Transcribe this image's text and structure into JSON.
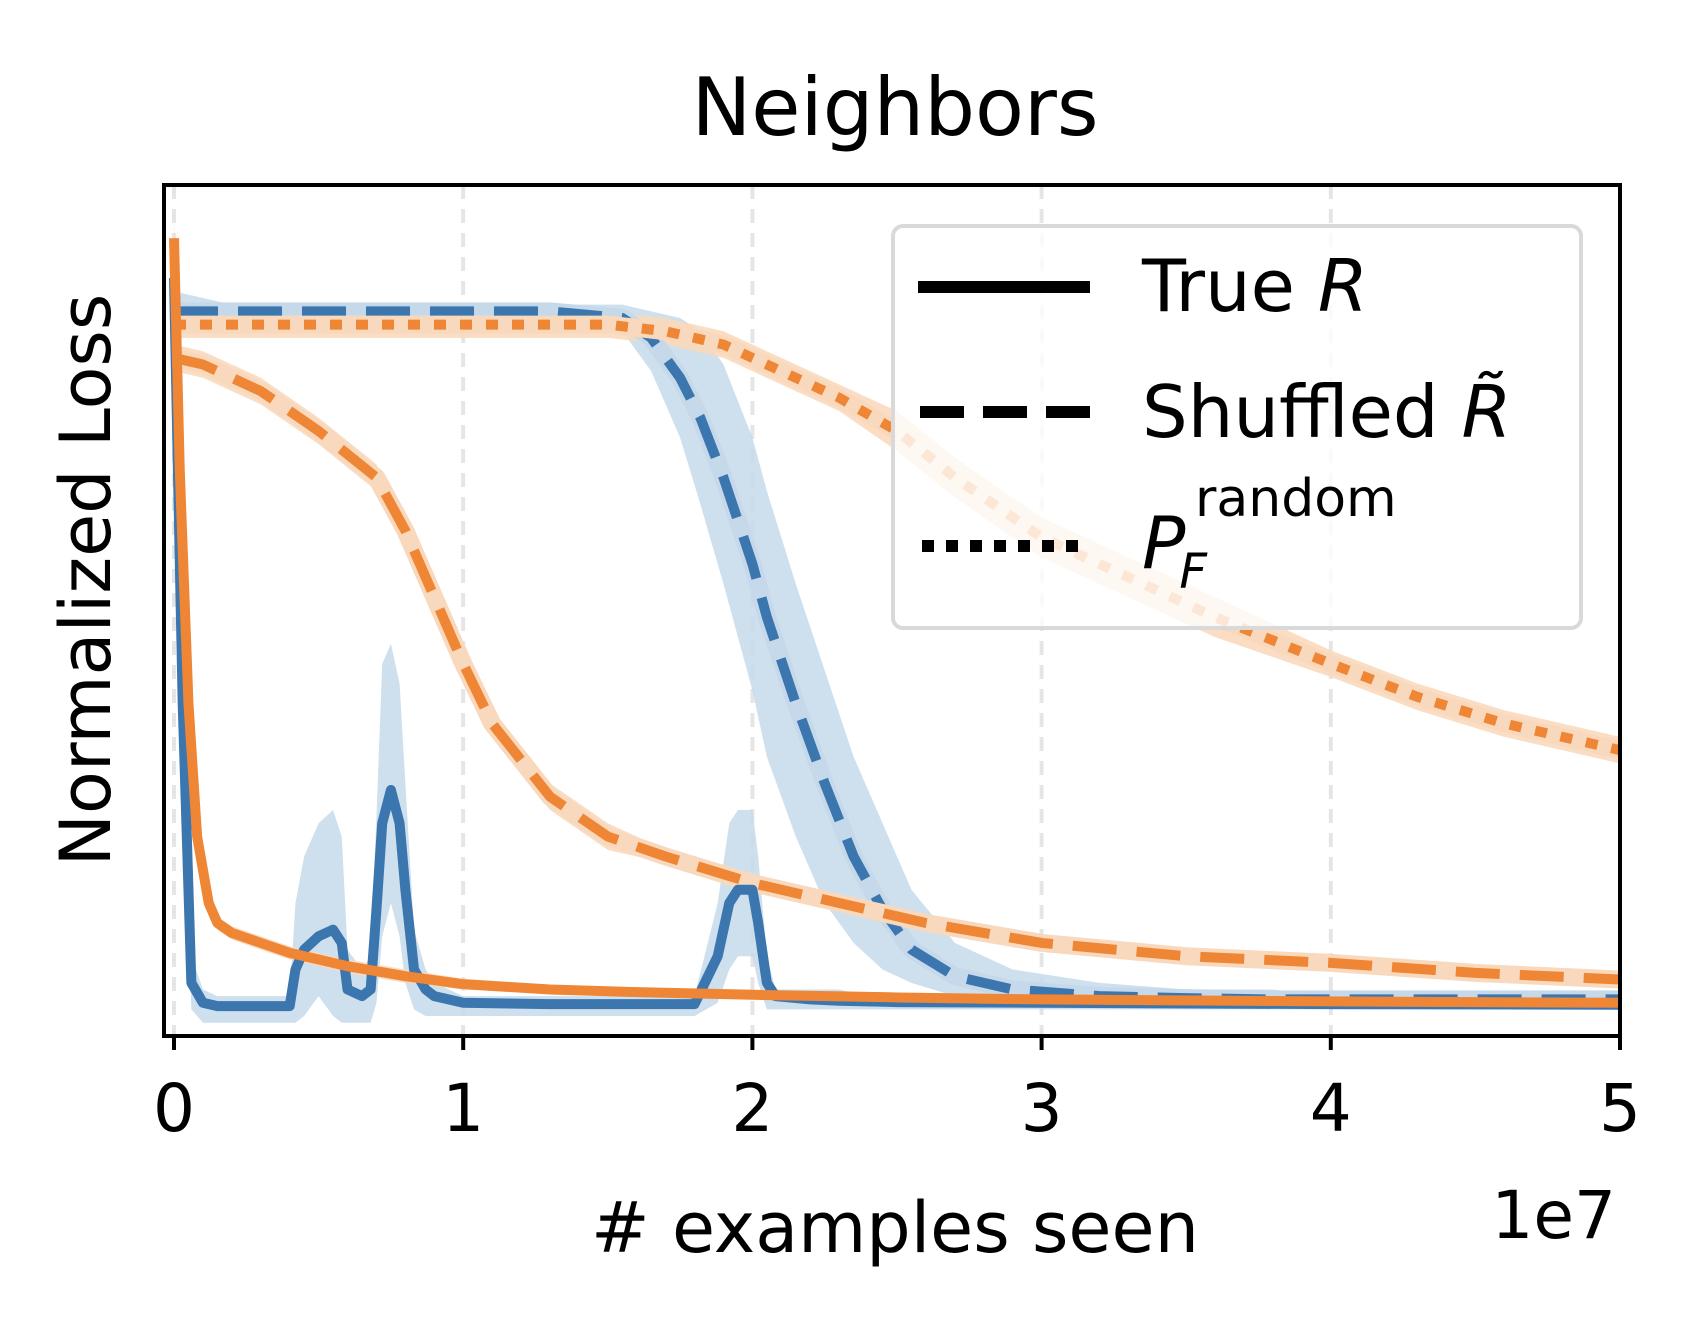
{
  "chart_data": {
    "type": "line",
    "title": "Neighbors",
    "xlabel": "# examples seen",
    "ylabel": "Normalized Loss",
    "x_offset_label": "1e7",
    "x_ticks": [
      "0",
      "1",
      "2",
      "3",
      "4",
      "5"
    ],
    "y_ticks": [],
    "xlim": [
      0,
      5
    ],
    "ylim": [
      0,
      1.28
    ],
    "x_grid": true,
    "y_grid": false,
    "legend": {
      "position": "top-right",
      "entries": [
        {
          "style": "solid",
          "label_main": "True ",
          "label_var": "R",
          "label_sup": ""
        },
        {
          "style": "dashed",
          "label_main": "Shuffled ",
          "label_var": "R̃",
          "label_sup": ""
        },
        {
          "style": "dotted",
          "label_main": "",
          "label_var": "P",
          "label_sub": "F",
          "label_sup": "random"
        }
      ]
    },
    "colors": {
      "blue": "#3b76af",
      "orange": "#ef8636",
      "blue_band": "#c6d9ea",
      "orange_band": "#f9d9bd"
    },
    "series": [
      {
        "color": "blue",
        "style": "solid",
        "x": [
          0.0,
          0.03,
          0.06,
          0.1,
          0.15,
          0.2,
          0.4,
          0.42,
          0.45,
          0.5,
          0.55,
          0.58,
          0.6,
          0.65,
          0.68,
          0.7,
          0.72,
          0.75,
          0.78,
          0.8,
          0.83,
          0.87,
          0.9,
          1.0,
          1.3,
          1.6,
          1.8,
          1.88,
          1.92,
          1.95,
          2.0,
          2.02,
          2.05,
          2.08,
          2.2,
          2.3,
          2.4,
          2.5,
          3.0,
          4.0,
          5.0
        ],
        "y": [
          1.14,
          0.5,
          0.08,
          0.05,
          0.045,
          0.045,
          0.045,
          0.1,
          0.13,
          0.15,
          0.16,
          0.14,
          0.07,
          0.06,
          0.07,
          0.19,
          0.32,
          0.37,
          0.32,
          0.22,
          0.1,
          0.07,
          0.06,
          0.05,
          0.048,
          0.048,
          0.048,
          0.12,
          0.2,
          0.22,
          0.22,
          0.17,
          0.08,
          0.06,
          0.055,
          0.053,
          0.052,
          0.051,
          0.05,
          0.048,
          0.047
        ],
        "band_lower": [
          1.06,
          0.42,
          0.04,
          0.02,
          0.02,
          0.02,
          0.02,
          0.02,
          0.03,
          0.06,
          0.03,
          0.02,
          0.02,
          0.02,
          0.02,
          0.05,
          0.15,
          0.2,
          0.15,
          0.08,
          0.04,
          0.03,
          0.03,
          0.03,
          0.03,
          0.03,
          0.03,
          0.05,
          0.1,
          0.12,
          0.12,
          0.08,
          0.04,
          0.04,
          0.04,
          0.04,
          0.04,
          0.04,
          0.04,
          0.04,
          0.04
        ],
        "band_upper": [
          1.17,
          0.58,
          0.12,
          0.07,
          0.06,
          0.06,
          0.06,
          0.2,
          0.27,
          0.32,
          0.34,
          0.3,
          0.13,
          0.1,
          0.12,
          0.33,
          0.56,
          0.59,
          0.53,
          0.38,
          0.16,
          0.1,
          0.08,
          0.06,
          0.06,
          0.06,
          0.06,
          0.2,
          0.32,
          0.34,
          0.34,
          0.27,
          0.12,
          0.07,
          0.07,
          0.07,
          0.06,
          0.06,
          0.06,
          0.06,
          0.06
        ]
      },
      {
        "color": "blue",
        "style": "dashed",
        "x": [
          0.0,
          0.2,
          0.5,
          1.0,
          1.3,
          1.55,
          1.65,
          1.75,
          1.82,
          1.9,
          2.0,
          2.05,
          2.15,
          2.25,
          2.35,
          2.45,
          2.55,
          2.7,
          2.9,
          3.2,
          3.5,
          3.8,
          4.0,
          5.0
        ],
        "y": [
          1.09,
          1.09,
          1.09,
          1.09,
          1.09,
          1.08,
          1.05,
          0.99,
          0.93,
          0.84,
          0.71,
          0.63,
          0.5,
          0.38,
          0.27,
          0.19,
          0.13,
          0.09,
          0.07,
          0.06,
          0.057,
          0.055,
          0.055,
          0.055
        ],
        "band_lower": [
          1.07,
          1.08,
          1.08,
          1.08,
          1.08,
          1.06,
          1.0,
          0.9,
          0.8,
          0.68,
          0.52,
          0.42,
          0.3,
          0.2,
          0.14,
          0.1,
          0.08,
          0.06,
          0.05,
          0.05,
          0.05,
          0.05,
          0.05,
          0.05
        ],
        "band_upper": [
          1.12,
          1.1,
          1.1,
          1.1,
          1.1,
          1.1,
          1.09,
          1.08,
          1.06,
          1.01,
          0.9,
          0.82,
          0.68,
          0.55,
          0.42,
          0.32,
          0.22,
          0.14,
          0.1,
          0.08,
          0.07,
          0.07,
          0.06,
          0.06
        ]
      },
      {
        "color": "orange",
        "style": "solid",
        "x": [
          0.0,
          0.02,
          0.05,
          0.08,
          0.12,
          0.15,
          0.2,
          0.3,
          0.4,
          0.5,
          0.6,
          0.8,
          1.0,
          1.3,
          1.6,
          2.0,
          2.5,
          3.0,
          4.0,
          5.0
        ],
        "y": [
          1.2,
          0.85,
          0.5,
          0.3,
          0.2,
          0.17,
          0.155,
          0.14,
          0.125,
          0.115,
          0.105,
          0.09,
          0.078,
          0.07,
          0.066,
          0.062,
          0.058,
          0.055,
          0.052,
          0.05
        ],
        "band_lower": [
          1.17,
          0.82,
          0.47,
          0.28,
          0.19,
          0.16,
          0.145,
          0.13,
          0.115,
          0.105,
          0.095,
          0.08,
          0.07,
          0.063,
          0.06,
          0.056,
          0.052,
          0.05,
          0.048,
          0.046
        ],
        "band_upper": [
          1.23,
          0.88,
          0.53,
          0.32,
          0.21,
          0.18,
          0.165,
          0.15,
          0.135,
          0.125,
          0.115,
          0.1,
          0.086,
          0.077,
          0.072,
          0.068,
          0.064,
          0.06,
          0.056,
          0.054
        ]
      },
      {
        "color": "orange",
        "style": "dashed",
        "x": [
          0.0,
          0.1,
          0.2,
          0.3,
          0.5,
          0.7,
          0.8,
          0.9,
          1.0,
          1.1,
          1.3,
          1.5,
          1.7,
          2.0,
          2.3,
          2.6,
          3.0,
          3.5,
          4.0,
          4.5,
          5.0
        ],
        "y": [
          1.02,
          1.01,
          0.99,
          0.97,
          0.91,
          0.84,
          0.76,
          0.66,
          0.56,
          0.47,
          0.36,
          0.3,
          0.27,
          0.23,
          0.2,
          0.17,
          0.14,
          0.12,
          0.11,
          0.095,
          0.085
        ],
        "band_lower": [
          1.0,
          0.99,
          0.97,
          0.95,
          0.89,
          0.82,
          0.74,
          0.64,
          0.54,
          0.45,
          0.34,
          0.28,
          0.26,
          0.22,
          0.19,
          0.16,
          0.13,
          0.11,
          0.1,
          0.088,
          0.078
        ],
        "band_upper": [
          1.04,
          1.03,
          1.01,
          0.99,
          0.93,
          0.86,
          0.78,
          0.68,
          0.58,
          0.49,
          0.38,
          0.32,
          0.28,
          0.24,
          0.21,
          0.18,
          0.15,
          0.13,
          0.12,
          0.102,
          0.092
        ]
      },
      {
        "color": "orange",
        "style": "dotted",
        "x": [
          0.0,
          0.5,
          1.0,
          1.5,
          1.7,
          1.9,
          2.1,
          2.3,
          2.5,
          2.7,
          3.0,
          3.3,
          3.6,
          4.0,
          4.3,
          4.6,
          5.0
        ],
        "y": [
          1.07,
          1.07,
          1.07,
          1.07,
          1.06,
          1.04,
          1.0,
          0.96,
          0.91,
          0.84,
          0.75,
          0.69,
          0.63,
          0.56,
          0.51,
          0.47,
          0.43
        ],
        "band_lower": [
          1.05,
          1.05,
          1.05,
          1.05,
          1.04,
          1.02,
          0.98,
          0.94,
          0.88,
          0.81,
          0.72,
          0.66,
          0.6,
          0.54,
          0.49,
          0.45,
          0.41
        ],
        "band_upper": [
          1.09,
          1.09,
          1.09,
          1.09,
          1.08,
          1.06,
          1.02,
          0.98,
          0.94,
          0.87,
          0.78,
          0.72,
          0.66,
          0.58,
          0.53,
          0.49,
          0.45
        ]
      }
    ]
  }
}
